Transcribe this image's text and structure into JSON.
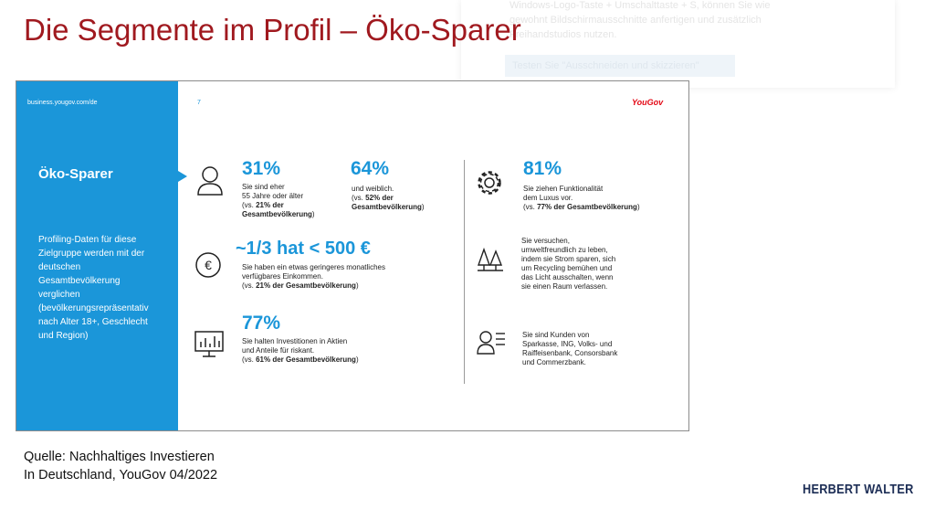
{
  "title": "Die Segmente im Profil – Öko-Sparer",
  "ghost_overlay": {
    "lines": [
      "Windows-Logo-Taste + Umschalttaste + S, können Sie wie",
      "gewohnt Bildschirmausschnitte anfertigen und zusätzlich",
      "Freihandstudios nutzen."
    ],
    "button": "Testen Sie \"Ausschneiden und skizzieren\""
  },
  "slide": {
    "url": "business.yougov.com/de",
    "page_number": "7",
    "brand": "YouGov",
    "segment_title": "Öko-Sparer",
    "segment_description": [
      "Profiling-Daten für diese",
      "Zielgruppe werden mit der",
      "deutschen",
      "Gesamtbevölkerung",
      "verglichen",
      "(bevölkerungsrepräsentativ",
      "nach Alter 18+, Geschlecht",
      "und Region)"
    ],
    "stats": {
      "age": {
        "value": "31%",
        "icon": "person-icon",
        "lines": [
          "Sie sind eher",
          "55 Jahre oder älter",
          "(vs. ",
          "21% der",
          "Gesamtbevölkerung",
          ")"
        ]
      },
      "female": {
        "value": "64%",
        "lines": [
          "und weiblich.",
          "(vs. ",
          "52% der",
          "Gesamtbevölkerung",
          ")"
        ]
      },
      "income": {
        "value": "~1/3 hat < 500 €",
        "icon": "euro-icon",
        "lines": [
          "Sie haben ein etwas geringeres monatliches",
          "verfügbares Einkommen.",
          "(vs. ",
          "21% der Gesamtbevölkerung",
          ")"
        ]
      },
      "risk": {
        "value": "77%",
        "icon": "chart-monitor-icon",
        "lines": [
          "Sie halten Investitionen in Aktien",
          "und Anteile für riskant.",
          "(vs. ",
          "61% der Gesamtbevölkerung",
          ")"
        ]
      },
      "function": {
        "value": "81%",
        "icon": "gear-icon",
        "lines": [
          "Sie ziehen Funktionalität",
          "dem Luxus vor.",
          "(vs. ",
          "77% der Gesamtbevölkerung",
          ")"
        ]
      },
      "eco": {
        "icon": "trees-icon",
        "lines": [
          "Sie versuchen,",
          "umweltfreundlich zu leben,",
          "indem sie Strom sparen, sich",
          "um Recycling bemühen und",
          "das Licht ausschalten, wenn",
          "sie einen Raum verlassen."
        ]
      },
      "banks": {
        "icon": "customer-list-icon",
        "lines": [
          "Sie sind Kunden von",
          "Sparkasse, ING, Volks- und",
          "Raiffeisenbank, Consorsbank",
          "und Commerzbank."
        ]
      }
    }
  },
  "source": [
    "Quelle: Nachhaltiges Investieren",
    "In Deutschland, YouGov 04/2022"
  ],
  "logo": "HERBERT WALTER",
  "colors": {
    "title_red": "#a0191f",
    "accent_blue": "#1b96d9",
    "logo_navy": "#1c2d55",
    "yougov_red": "#e30613"
  }
}
